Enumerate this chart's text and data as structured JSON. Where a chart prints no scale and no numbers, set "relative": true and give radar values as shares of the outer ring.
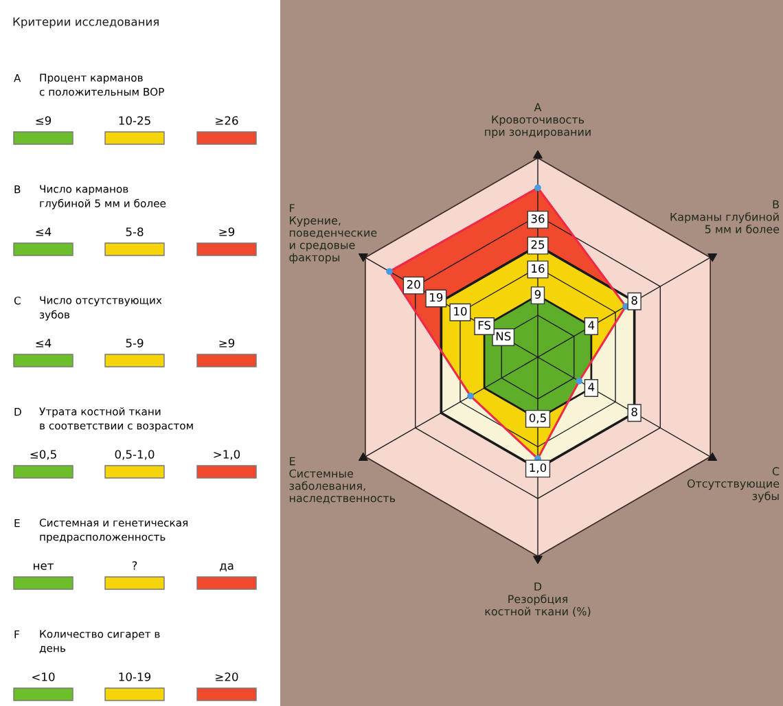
{
  "chart_data": [
    {
      "type": "radar",
      "categories": [
        "A\nКровоточивость\nпри зондировании",
        "B\nКарманы глубиной\n5 мм и более",
        "C\nОтсутствующие\nзубы",
        "D\nРезорбция\nкостной ткани (%)",
        "E\nСистемные\nзаболевания,\nнаследственность",
        "F\nКурение,\nповеденческие\nи средовые\nфакторы"
      ],
      "series": [
        {
          "color": "#ee2a4a",
          "values": [
            0.85,
            0.51,
            0.24,
            0.51,
            0.39,
            0.86
          ]
        }
      ],
      "relative": true,
      "marker": "circle",
      "grid": true,
      "annotations": [
        {
          "text": "9",
          "x": "A\nКровоточивость\nпри зондировании"
        },
        {
          "text": "16",
          "x": "A\nКровоточивость\nпри зондировании"
        },
        {
          "text": "25",
          "x": "A\nКровоточивость\nпри зондировании"
        },
        {
          "text": "36",
          "x": "A\nКровоточивость\nпри зондировании"
        },
        {
          "text": "4",
          "x": "B\nКарманы глубиной\n5 мм и более"
        },
        {
          "text": "8",
          "x": "B\nКарманы глубиной\n5 мм и более"
        },
        {
          "text": "4",
          "x": "C\nОтсутствующие\nзубы"
        },
        {
          "text": "8",
          "x": "C\nОтсутствующие\nзубы"
        },
        {
          "text": "0,5",
          "x": "D\nРезорбция\nкостной ткани (%)"
        },
        {
          "text": "1,0",
          "x": "D\nРезорбция\nкостной ткани (%)"
        },
        {
          "text": "NS",
          "x": "F\nКурение,\nповеденческие\nи средовые\nфакторы"
        },
        {
          "text": "FS",
          "x": "F\nКурение,\nповеденческие\nи средовые\nфакторы"
        },
        {
          "text": "10",
          "x": "F\nКурение,\nповеденческие\nи средовые\nфакторы"
        },
        {
          "text": "19",
          "x": "F\nКурение,\nповеденческие\nи средовые\nфакторы"
        },
        {
          "text": "20",
          "x": "F\nКурение,\nповеденческие\nи средовые\nфакторы"
        }
      ]
    },
    {
      "type": "other",
      "title": "Критерии исследования",
      "colors": [
        "#6cbf2a",
        "#f5d40a",
        "#f0492e"
      ],
      "annotations": [
        "A",
        "Процент карманов\nс положительным BOP",
        "≤9",
        "10-25",
        "≥26",
        "B",
        "Число карманов\nглубиной 5 мм и более",
        "≤4",
        "5-8",
        "≥9",
        "C",
        "Число отсутствующих\nзубов",
        "≤4",
        "5-9",
        "≥9",
        "D",
        "Утрата костной ткани\nв соответствии с возрастом",
        "≤0,5",
        "0,5-1,0",
        ">1,0",
        "E",
        "Системная и генетическая\nпредрасположенность",
        "нет",
        "?",
        "да",
        "F",
        "Количество сигарет в\nдень",
        "<10",
        "10-19",
        "≥20"
      ]
    }
  ]
}
